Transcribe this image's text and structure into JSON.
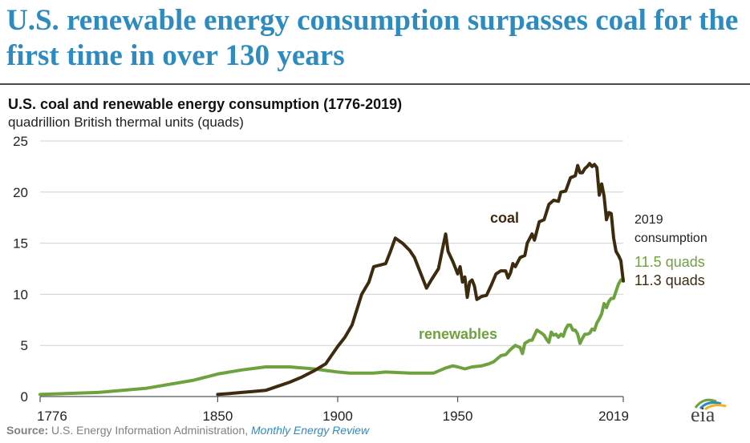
{
  "headline": "U.S. renewable energy consumption surpasses coal for the first time in over 130 years",
  "source": {
    "label": "Source:",
    "text": "U.S. Energy Information Administration,",
    "publication": "Monthly Energy Review"
  },
  "logo": {
    "text": "eia"
  },
  "colors": {
    "coal": "#3d2b0f",
    "renewables": "#6ea23e",
    "headline": "#2e8bc0",
    "grid": "#d0d0d0"
  },
  "chart_data": {
    "type": "line",
    "title": "U.S. coal and renewable energy consumption (1776-2019)",
    "subtitle": "quadrillion British thermal units (quads)",
    "xlim": [
      1776,
      2019
    ],
    "ylim": [
      0,
      25
    ],
    "x_ticks": [
      1776,
      1850,
      1900,
      1950,
      2019
    ],
    "y_ticks": [
      0,
      5,
      10,
      15,
      20,
      25
    ],
    "grid": "horizontal",
    "annotations": {
      "right_header": [
        "2019",
        "consumption"
      ],
      "renewables_value": "11.5 quads",
      "coal_value": "11.3 quads"
    },
    "series": [
      {
        "name": "coal",
        "color": "#3d2b0f",
        "points": [
          [
            1850,
            0.2
          ],
          [
            1855,
            0.3
          ],
          [
            1860,
            0.4
          ],
          [
            1865,
            0.5
          ],
          [
            1870,
            0.6
          ],
          [
            1875,
            1.0
          ],
          [
            1880,
            1.4
          ],
          [
            1885,
            1.9
          ],
          [
            1890,
            2.5
          ],
          [
            1895,
            3.2
          ],
          [
            1900,
            4.9
          ],
          [
            1903,
            5.8
          ],
          [
            1906,
            7.0
          ],
          [
            1908,
            8.5
          ],
          [
            1910,
            10.0
          ],
          [
            1913,
            11.2
          ],
          [
            1915,
            12.7
          ],
          [
            1920,
            13.0
          ],
          [
            1922,
            14.2
          ],
          [
            1924,
            15.5
          ],
          [
            1927,
            15.0
          ],
          [
            1930,
            14.3
          ],
          [
            1932,
            13.6
          ],
          [
            1935,
            11.8
          ],
          [
            1937,
            10.6
          ],
          [
            1939,
            11.4
          ],
          [
            1942,
            12.5
          ],
          [
            1944,
            14.8
          ],
          [
            1945,
            15.9
          ],
          [
            1946,
            14.2
          ],
          [
            1948,
            13.2
          ],
          [
            1950,
            12.0
          ],
          [
            1951,
            12.7
          ],
          [
            1952,
            11.2
          ],
          [
            1953,
            11.7
          ],
          [
            1954,
            9.7
          ],
          [
            1955,
            11.2
          ],
          [
            1956,
            11.4
          ],
          [
            1957,
            10.8
          ],
          [
            1958,
            9.5
          ],
          [
            1960,
            9.8
          ],
          [
            1962,
            9.9
          ],
          [
            1964,
            10.9
          ],
          [
            1966,
            12.0
          ],
          [
            1968,
            12.3
          ],
          [
            1970,
            12.3
          ],
          [
            1971,
            11.6
          ],
          [
            1972,
            12.1
          ],
          [
            1973,
            13.0
          ],
          [
            1974,
            12.7
          ],
          [
            1976,
            13.6
          ],
          [
            1978,
            13.8
          ],
          [
            1979,
            15.0
          ],
          [
            1981,
            15.9
          ],
          [
            1982,
            15.3
          ],
          [
            1984,
            17.1
          ],
          [
            1986,
            17.3
          ],
          [
            1988,
            18.8
          ],
          [
            1990,
            19.2
          ],
          [
            1992,
            19.1
          ],
          [
            1993,
            20.0
          ],
          [
            1995,
            20.1
          ],
          [
            1997,
            21.4
          ],
          [
            1999,
            21.6
          ],
          [
            2000,
            22.6
          ],
          [
            2001,
            21.9
          ],
          [
            2002,
            21.9
          ],
          [
            2003,
            22.3
          ],
          [
            2004,
            22.5
          ],
          [
            2005,
            22.8
          ],
          [
            2006,
            22.5
          ],
          [
            2007,
            22.7
          ],
          [
            2008,
            22.4
          ],
          [
            2009,
            19.7
          ],
          [
            2010,
            20.8
          ],
          [
            2011,
            19.6
          ],
          [
            2012,
            17.3
          ],
          [
            2013,
            18.0
          ],
          [
            2014,
            17.9
          ],
          [
            2015,
            15.5
          ],
          [
            2016,
            14.2
          ],
          [
            2017,
            13.8
          ],
          [
            2018,
            13.3
          ],
          [
            2019,
            11.3
          ]
        ]
      },
      {
        "name": "renewables",
        "color": "#6ea23e",
        "points": [
          [
            1776,
            0.2
          ],
          [
            1800,
            0.4
          ],
          [
            1820,
            0.8
          ],
          [
            1840,
            1.6
          ],
          [
            1850,
            2.2
          ],
          [
            1860,
            2.6
          ],
          [
            1870,
            2.9
          ],
          [
            1880,
            2.9
          ],
          [
            1890,
            2.7
          ],
          [
            1900,
            2.4
          ],
          [
            1905,
            2.3
          ],
          [
            1910,
            2.3
          ],
          [
            1915,
            2.3
          ],
          [
            1920,
            2.4
          ],
          [
            1930,
            2.3
          ],
          [
            1935,
            2.3
          ],
          [
            1940,
            2.3
          ],
          [
            1945,
            2.8
          ],
          [
            1948,
            3.0
          ],
          [
            1950,
            2.9
          ],
          [
            1953,
            2.7
          ],
          [
            1956,
            2.9
          ],
          [
            1960,
            3.0
          ],
          [
            1963,
            3.2
          ],
          [
            1965,
            3.4
          ],
          [
            1968,
            4.0
          ],
          [
            1970,
            4.1
          ],
          [
            1972,
            4.6
          ],
          [
            1974,
            5.0
          ],
          [
            1976,
            4.8
          ],
          [
            1977,
            4.2
          ],
          [
            1978,
            5.2
          ],
          [
            1980,
            5.5
          ],
          [
            1981,
            5.5
          ],
          [
            1982,
            6.0
          ],
          [
            1983,
            6.5
          ],
          [
            1985,
            6.2
          ],
          [
            1986,
            6.0
          ],
          [
            1987,
            5.6
          ],
          [
            1988,
            5.3
          ],
          [
            1989,
            6.3
          ],
          [
            1990,
            6.0
          ],
          [
            1991,
            6.1
          ],
          [
            1992,
            5.8
          ],
          [
            1993,
            6.1
          ],
          [
            1994,
            5.9
          ],
          [
            1995,
            6.6
          ],
          [
            1996,
            7.0
          ],
          [
            1997,
            7.0
          ],
          [
            1998,
            6.5
          ],
          [
            1999,
            6.5
          ],
          [
            2000,
            6.1
          ],
          [
            2001,
            5.2
          ],
          [
            2002,
            5.7
          ],
          [
            2003,
            6.1
          ],
          [
            2004,
            6.1
          ],
          [
            2005,
            6.2
          ],
          [
            2006,
            6.6
          ],
          [
            2007,
            6.5
          ],
          [
            2008,
            7.2
          ],
          [
            2009,
            7.6
          ],
          [
            2010,
            8.1
          ],
          [
            2011,
            9.1
          ],
          [
            2012,
            8.7
          ],
          [
            2013,
            9.3
          ],
          [
            2014,
            9.6
          ],
          [
            2015,
            9.6
          ],
          [
            2016,
            10.3
          ],
          [
            2017,
            11.0
          ],
          [
            2018,
            11.4
          ],
          [
            2019,
            11.5
          ]
        ]
      }
    ]
  }
}
